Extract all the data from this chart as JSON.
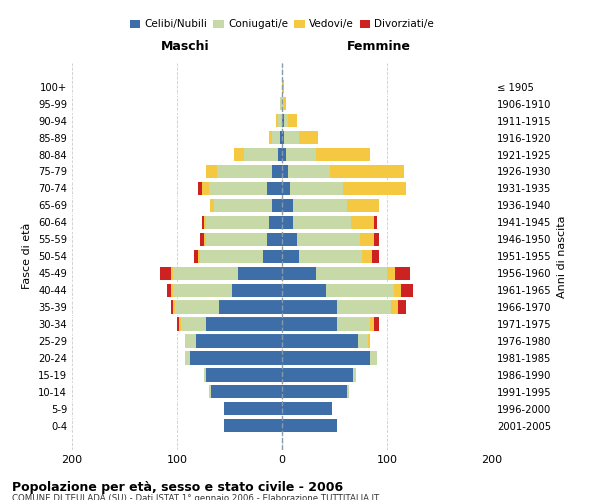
{
  "age_groups": [
    "0-4",
    "5-9",
    "10-14",
    "15-19",
    "20-24",
    "25-29",
    "30-34",
    "35-39",
    "40-44",
    "45-49",
    "50-54",
    "55-59",
    "60-64",
    "65-69",
    "70-74",
    "75-79",
    "80-84",
    "85-89",
    "90-94",
    "95-99",
    "100+"
  ],
  "birth_years": [
    "2001-2005",
    "1996-2000",
    "1991-1995",
    "1986-1990",
    "1981-1985",
    "1976-1980",
    "1971-1975",
    "1966-1970",
    "1961-1965",
    "1956-1960",
    "1951-1955",
    "1946-1950",
    "1941-1945",
    "1936-1940",
    "1931-1935",
    "1926-1930",
    "1921-1925",
    "1916-1920",
    "1911-1915",
    "1906-1910",
    "≤ 1905"
  ],
  "males": {
    "celibi": [
      55,
      55,
      68,
      72,
      88,
      82,
      72,
      60,
      48,
      42,
      18,
      14,
      12,
      10,
      14,
      10,
      4,
      2,
      0,
      0,
      0
    ],
    "coniugati": [
      0,
      0,
      2,
      2,
      4,
      10,
      24,
      42,
      56,
      62,
      60,
      58,
      60,
      55,
      56,
      52,
      32,
      8,
      4,
      2,
      0
    ],
    "vedovi": [
      0,
      0,
      0,
      0,
      0,
      0,
      2,
      2,
      2,
      2,
      2,
      2,
      2,
      4,
      6,
      10,
      10,
      2,
      2,
      0,
      0
    ],
    "divorziati": [
      0,
      0,
      0,
      0,
      0,
      0,
      2,
      2,
      4,
      10,
      4,
      4,
      2,
      0,
      4,
      0,
      0,
      0,
      0,
      0,
      0
    ]
  },
  "females": {
    "nubili": [
      52,
      48,
      62,
      68,
      84,
      72,
      52,
      52,
      42,
      32,
      16,
      14,
      10,
      10,
      8,
      6,
      4,
      2,
      2,
      0,
      0
    ],
    "coniugate": [
      0,
      0,
      2,
      2,
      6,
      10,
      32,
      52,
      65,
      68,
      60,
      60,
      56,
      52,
      50,
      40,
      28,
      14,
      4,
      2,
      0
    ],
    "vedove": [
      0,
      0,
      0,
      0,
      0,
      2,
      4,
      6,
      6,
      8,
      10,
      14,
      22,
      30,
      60,
      70,
      52,
      18,
      8,
      2,
      2
    ],
    "divorziate": [
      0,
      0,
      0,
      0,
      0,
      0,
      4,
      8,
      12,
      14,
      6,
      4,
      2,
      0,
      0,
      0,
      0,
      0,
      0,
      0,
      0
    ]
  },
  "color_celibi": "#3d6ea8",
  "color_coniugati": "#c8d9a8",
  "color_vedovi": "#f5c842",
  "color_divorziati": "#cc2222",
  "title": "Popolazione per età, sesso e stato civile - 2006",
  "subtitle": "COMUNE DI TEULADA (SU) - Dati ISTAT 1° gennaio 2006 - Elaborazione TUTTITALIA.IT",
  "ylabel_left": "Fasce di età",
  "ylabel_right": "Anni di nascita",
  "xlabel_left": "Maschi",
  "xlabel_right": "Femmine",
  "xlim": 200,
  "background_color": "#ffffff",
  "grid_color": "#cccccc"
}
